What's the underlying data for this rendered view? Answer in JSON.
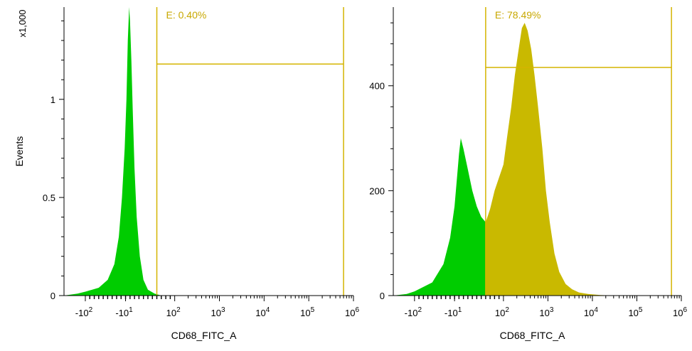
{
  "colors": {
    "negative_fill": "#00cc00",
    "positive_fill": "#c9b900",
    "gate_line": "#d4b400",
    "gate_text": "#c8a800",
    "axis": "#000000"
  },
  "x_axis": {
    "title": "CD68_FITC_A",
    "scale": "biexponential",
    "tick_labels": [
      {
        "value": -100,
        "base": "-10",
        "exp": "2"
      },
      {
        "value": -10,
        "base": "-10",
        "exp": "1"
      },
      {
        "value": 100,
        "base": "10",
        "exp": "2"
      },
      {
        "value": 1000,
        "base": "10",
        "exp": "3"
      },
      {
        "value": 10000,
        "base": "10",
        "exp": "4"
      },
      {
        "value": 100000,
        "base": "10",
        "exp": "5"
      },
      {
        "value": 1000000,
        "base": "10",
        "exp": "6"
      }
    ]
  },
  "chart_data": [
    {
      "type": "area",
      "title": "",
      "xlabel": "CD68_FITC_A",
      "ylabel": "Events",
      "y_multiplier_label": "x1,000",
      "ylim": [
        0,
        1.47
      ],
      "y_ticks": [
        {
          "value": 0,
          "label": "0"
        },
        {
          "value": 0.5,
          "label": "0.5"
        },
        {
          "value": 1,
          "label": "1"
        }
      ],
      "gate": {
        "label": "E: 0.40%",
        "x_start": 60,
        "x_end": 600000,
        "y_level": 1.18
      },
      "series": [
        {
          "fill": "negative",
          "x": [
            -300,
            -150,
            -100,
            -70,
            -50,
            -35,
            -25,
            -18,
            -12,
            -8,
            -5,
            -2,
            0,
            3,
            6,
            10,
            15,
            22,
            30,
            40,
            55,
            70
          ],
          "y": [
            0,
            0.01,
            0.02,
            0.04,
            0.08,
            0.16,
            0.3,
            0.5,
            0.75,
            1.0,
            1.3,
            1.47,
            1.4,
            1.2,
            0.95,
            0.65,
            0.4,
            0.2,
            0.08,
            0.03,
            0.01,
            0
          ]
        }
      ]
    },
    {
      "type": "area",
      "title": "",
      "xlabel": "CD68_FITC_A",
      "ylabel": "",
      "ylim": [
        0,
        550
      ],
      "y_ticks": [
        {
          "value": 0,
          "label": "0"
        },
        {
          "value": 200,
          "label": "200"
        },
        {
          "value": 400,
          "label": "400"
        }
      ],
      "gate": {
        "label": "E: 78.49%",
        "x_start": 60,
        "x_end": 600000,
        "y_level": 435
      },
      "series": [
        {
          "fill": "negative",
          "x": [
            -300,
            -150,
            -100,
            -60,
            -35,
            -20,
            -10,
            -4,
            0,
            4,
            10,
            20,
            30,
            40,
            50,
            60
          ],
          "y": [
            0,
            3,
            8,
            25,
            60,
            110,
            170,
            230,
            270,
            300,
            280,
            240,
            200,
            170,
            150,
            140
          ]
        },
        {
          "fill": "positive",
          "x": [
            60,
            70,
            80,
            100,
            120,
            150,
            180,
            220,
            260,
            300,
            350,
            420,
            500,
            600,
            750,
            900,
            1100,
            1400,
            1800,
            2500,
            3500,
            5000,
            8000,
            15000,
            30000
          ],
          "y": [
            140,
            165,
            200,
            250,
            300,
            360,
            420,
            470,
            510,
            520,
            505,
            470,
            420,
            360,
            280,
            200,
            140,
            80,
            45,
            22,
            12,
            6,
            3,
            1,
            0
          ]
        }
      ]
    }
  ]
}
